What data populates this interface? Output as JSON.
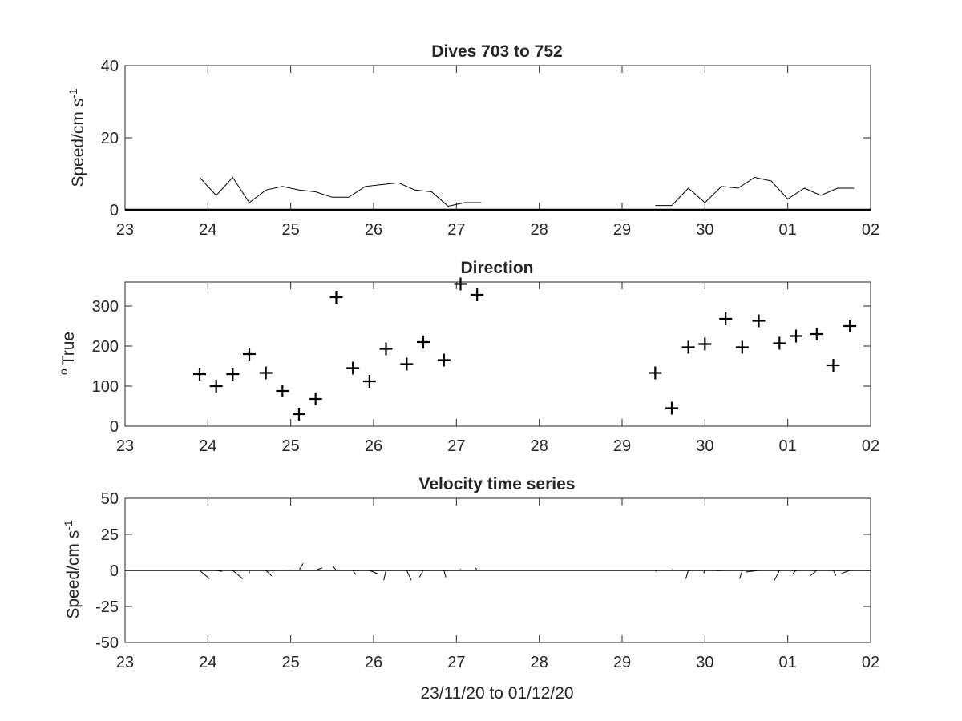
{
  "figure": {
    "xlabel": "23/11/20 to 01/12/20"
  },
  "chart_data": [
    {
      "type": "line",
      "title": "Dives 703 to 752",
      "ylabel": "Speed/cm s",
      "ylabel_superscript": "-1",
      "xlabel": "",
      "xticks": [
        "23",
        "24",
        "25",
        "26",
        "27",
        "28",
        "29",
        "30",
        "01",
        "02"
      ],
      "xlim": [
        23,
        32
      ],
      "ylim": [
        0,
        40
      ],
      "yticks": [
        0,
        20,
        40
      ],
      "series": [
        {
          "x": [
            23.9,
            24.1,
            24.3,
            24.5,
            24.7,
            24.9,
            25.1,
            25.3,
            25.5,
            25.7,
            25.9,
            26.1,
            26.3,
            26.5,
            26.7,
            26.9,
            27.1,
            27.3
          ],
          "y": [
            9,
            4,
            9,
            2,
            5.5,
            6.5,
            5.5,
            5,
            3.5,
            3.5,
            6.5,
            7,
            7.5,
            5.5,
            5,
            1,
            2,
            2
          ]
        },
        {
          "x": [
            29.4,
            29.6,
            29.8,
            30.0,
            30.2,
            30.4,
            30.6,
            30.8,
            31.0,
            31.2,
            31.4,
            31.6,
            31.8
          ],
          "y": [
            1.2,
            1.2,
            6,
            2,
            6.5,
            6,
            9,
            8,
            3,
            6,
            4,
            6,
            6
          ]
        }
      ],
      "color": "#000000"
    },
    {
      "type": "scatter",
      "title": "Direction",
      "ylabel": "True",
      "ylabel_superscript": "o",
      "xlabel": "",
      "xticks": [
        "23",
        "24",
        "25",
        "26",
        "27",
        "28",
        "29",
        "30",
        "01",
        "02"
      ],
      "xlim": [
        23,
        32
      ],
      "ylim": [
        0,
        360
      ],
      "yticks": [
        0,
        100,
        200,
        300
      ],
      "marker": "+",
      "x": [
        23.9,
        24.1,
        24.3,
        24.5,
        24.7,
        24.9,
        25.1,
        25.3,
        25.55,
        25.75,
        25.95,
        26.15,
        26.4,
        26.6,
        26.85,
        27.05,
        27.25,
        29.4,
        29.6,
        29.8,
        30.0,
        30.25,
        30.45,
        30.65,
        30.9,
        31.1,
        31.35,
        31.55,
        31.75
      ],
      "y": [
        130,
        100,
        130,
        180,
        133,
        88,
        30,
        68,
        322,
        145,
        112,
        193,
        155,
        210,
        165,
        355,
        328,
        133,
        45,
        197,
        205,
        268,
        197,
        263,
        207,
        225,
        230,
        152,
        250
      ],
      "color": "#000000"
    },
    {
      "type": "line",
      "subtype": "quiver",
      "title": "Velocity time series",
      "ylabel": "Speed/cm s",
      "ylabel_superscript": "-1",
      "xlabel": "23/11/20 to 01/12/20",
      "xticks": [
        "23",
        "24",
        "25",
        "26",
        "27",
        "28",
        "29",
        "30",
        "01",
        "02"
      ],
      "xlim": [
        23,
        32
      ],
      "ylim": [
        -50,
        50
      ],
      "yticks": [
        50,
        25,
        0,
        -25,
        -50
      ],
      "baseline": 0,
      "x": [
        23.9,
        24.1,
        24.3,
        24.5,
        24.7,
        24.9,
        25.1,
        25.3,
        25.55,
        25.75,
        25.95,
        26.15,
        26.4,
        26.6,
        26.85,
        27.05,
        27.25,
        29.4,
        29.6,
        29.8,
        30.0,
        30.25,
        30.45,
        30.65,
        30.9,
        31.1,
        31.35,
        31.55,
        31.75
      ],
      "direction_deg": [
        130,
        100,
        130,
        180,
        133,
        88,
        30,
        68,
        322,
        145,
        112,
        193,
        155,
        210,
        165,
        355,
        328,
        133,
        45,
        197,
        205,
        268,
        197,
        263,
        207,
        225,
        230,
        152,
        250
      ],
      "speed": [
        9,
        4,
        9,
        2,
        5.5,
        6.5,
        5.5,
        5,
        3.5,
        3.5,
        6.5,
        7,
        7.5,
        5.5,
        5,
        1,
        2,
        1.2,
        1.2,
        6,
        2,
        6.5,
        6,
        9,
        8,
        3,
        6,
        4,
        6
      ],
      "color": "#000000"
    }
  ]
}
